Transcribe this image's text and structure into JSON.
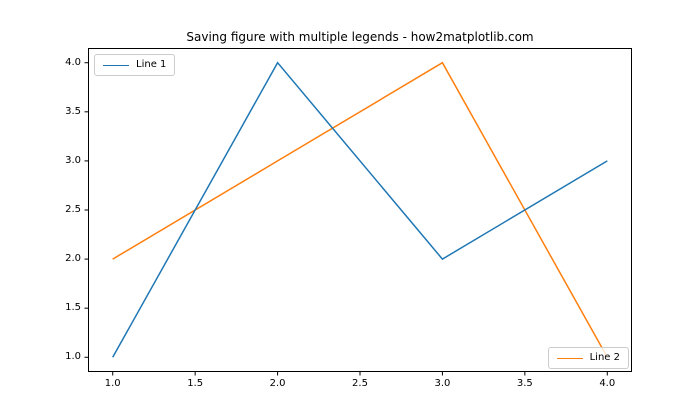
{
  "figure": {
    "background": "#ffffff"
  },
  "chart_data": {
    "type": "line",
    "title": "Saving figure with multiple legends - how2matplotlib.com",
    "x": [
      1.0,
      2.0,
      3.0,
      4.0
    ],
    "series": [
      {
        "name": "Line 1",
        "color": "#1f77b4",
        "values": [
          1.0,
          4.0,
          2.0,
          3.0
        ],
        "legend_position": "upper left",
        "zorder": 2
      },
      {
        "name": "Line 2",
        "color": "#ff7f0e",
        "values": [
          2.0,
          3.0,
          4.0,
          1.0
        ],
        "legend_position": "lower right",
        "zorder": 1
      }
    ],
    "xlabel": "",
    "ylabel": "",
    "xlim": [
      0.85,
      4.15
    ],
    "ylim": [
      0.85,
      4.15
    ],
    "xticks": [
      1.0,
      1.5,
      2.0,
      2.5,
      3.0,
      3.5,
      4.0
    ],
    "xtick_labels": [
      "1.0",
      "1.5",
      "2.0",
      "2.5",
      "3.0",
      "3.5",
      "4.0"
    ],
    "yticks": [
      1.0,
      1.5,
      2.0,
      2.5,
      3.0,
      3.5,
      4.0
    ],
    "ytick_labels": [
      "1.0",
      "1.5",
      "2.0",
      "2.5",
      "3.0",
      "3.5",
      "4.0"
    ],
    "grid": false,
    "legend_position": "none",
    "legend_entries": [
      "Line 1",
      "Line 2"
    ]
  },
  "colors": {
    "background": "#ffffff",
    "spine": "#000000",
    "tick": "#000000",
    "tick_text": "#000000",
    "title_text": "#000000",
    "legend_border": "#cccccc",
    "line1": "#1f77b4",
    "line2": "#ff7f0e"
  },
  "style": {
    "line_width": 1.5,
    "tick_length": 3.5
  }
}
